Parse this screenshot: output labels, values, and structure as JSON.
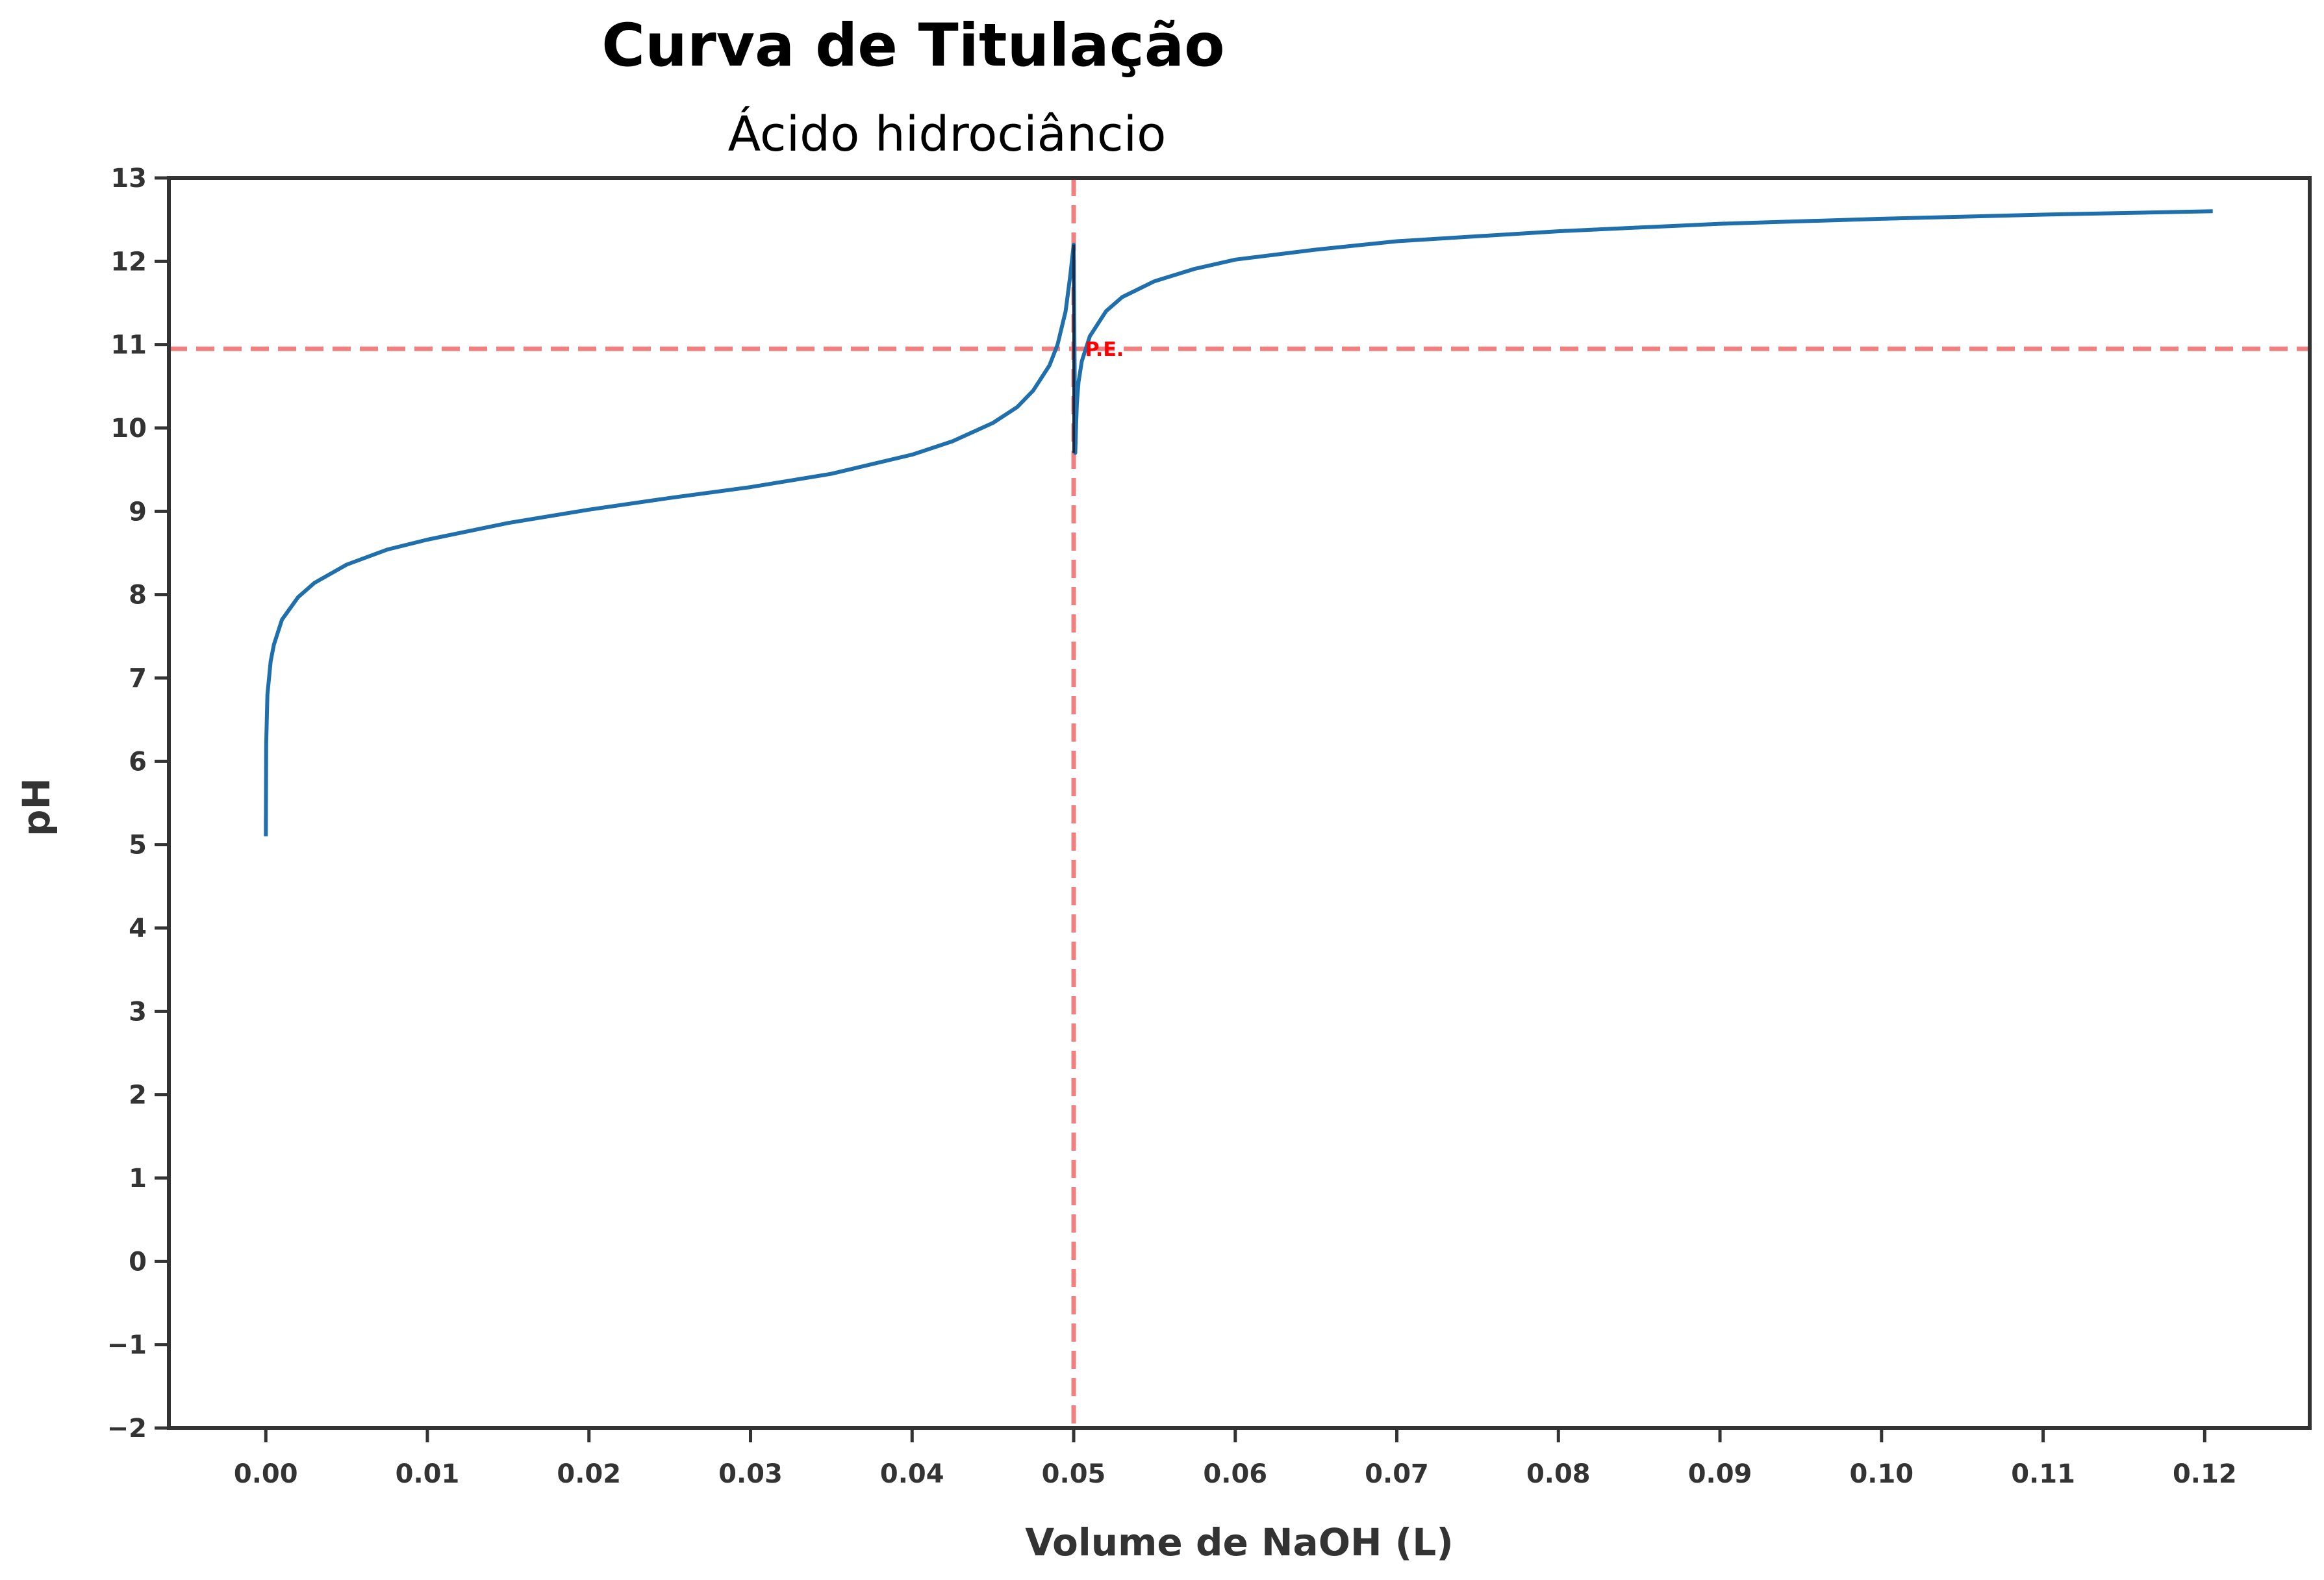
{
  "chart_data": {
    "type": "line",
    "title": "Curva de Titulação",
    "subtitle": "Ácido hidrociâncio",
    "xlabel": "Volume de NaOH (L)",
    "ylabel": "pH",
    "xlim": [
      -0.006,
      0.1265
    ],
    "ylim": [
      -2,
      13
    ],
    "xticks": [
      0.0,
      0.01,
      0.02,
      0.03,
      0.04,
      0.05,
      0.06,
      0.07,
      0.08,
      0.09,
      0.1,
      0.11,
      0.12
    ],
    "xtick_labels": [
      "0.00",
      "0.01",
      "0.02",
      "0.03",
      "0.04",
      "0.05",
      "0.06",
      "0.07",
      "0.08",
      "0.09",
      "0.10",
      "0.11",
      "0.12"
    ],
    "yticks": [
      -2,
      -1,
      0,
      1,
      2,
      3,
      4,
      5,
      6,
      7,
      8,
      9,
      10,
      11,
      12,
      13
    ],
    "ytick_labels": [
      "−2",
      "−1",
      "0",
      "1",
      "2",
      "3",
      "4",
      "5",
      "6",
      "7",
      "8",
      "9",
      "10",
      "11",
      "12",
      "13"
    ],
    "grid": false,
    "series": [
      {
        "color": "#1f6fad",
        "x": [
          0.0,
          2e-05,
          0.0001,
          0.0003,
          0.0005,
          0.001,
          0.002,
          0.003,
          0.005,
          0.0075,
          0.01,
          0.015,
          0.02,
          0.025,
          0.03,
          0.035,
          0.04,
          0.0425,
          0.045,
          0.0465,
          0.0475,
          0.0485,
          0.049,
          0.0495,
          0.0498,
          0.05,
          0.0501,
          0.05015,
          0.0502,
          0.0503,
          0.0505,
          0.051,
          0.052,
          0.053,
          0.055,
          0.0575,
          0.06,
          0.065,
          0.07,
          0.08,
          0.09,
          0.1,
          0.11,
          0.1205
        ],
        "y": [
          5.1,
          6.2,
          6.8,
          7.2,
          7.4,
          7.7,
          7.97,
          8.14,
          8.36,
          8.54,
          8.66,
          8.86,
          9.02,
          9.16,
          9.29,
          9.45,
          9.68,
          9.84,
          10.06,
          10.25,
          10.45,
          10.75,
          11.0,
          11.4,
          11.85,
          12.2,
          9.7,
          10.05,
          10.3,
          10.55,
          10.8,
          11.1,
          11.4,
          11.57,
          11.76,
          11.91,
          12.02,
          12.14,
          12.24,
          12.36,
          12.45,
          12.51,
          12.56,
          12.6
        ]
      }
    ],
    "reference_lines": {
      "color": "#f08080",
      "vertical_x": 0.05,
      "horizontal_y": 10.95
    },
    "annotation": {
      "text": "P.E.",
      "x": 0.0507,
      "y": 10.95,
      "color": "#ff0000"
    },
    "marker": {
      "color": "#1a2a44",
      "x": 0.05,
      "y_range": [
        9.7,
        12.2
      ]
    }
  }
}
